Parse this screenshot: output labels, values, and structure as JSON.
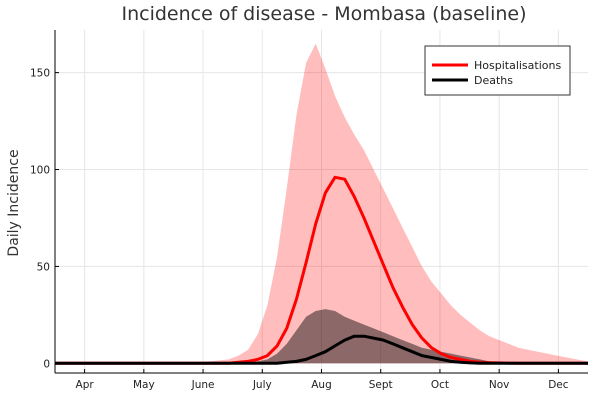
{
  "chart_data": {
    "type": "area",
    "title": "Incidence of disease - Mombasa (baseline)",
    "xlabel": "",
    "ylabel": "Daily Incidence",
    "x_ticks": [
      "Apr",
      "May",
      "June",
      "July",
      "Aug",
      "Sept",
      "Oct",
      "Nov",
      "Dec"
    ],
    "y_ticks": [
      0,
      50,
      100,
      150
    ],
    "xlim": [
      0,
      276
    ],
    "ylim": [
      -5,
      172
    ],
    "grid": true,
    "legend_position": "top-right",
    "x_points": [
      0,
      20,
      40,
      60,
      80,
      90,
      95,
      100,
      105,
      110,
      115,
      120,
      125,
      130,
      135,
      140,
      145,
      150,
      155,
      160,
      165,
      170,
      175,
      180,
      185,
      190,
      195,
      200,
      205,
      210,
      215,
      220,
      225,
      230,
      235,
      240,
      245,
      250,
      255,
      260,
      265,
      270,
      276
    ],
    "series": [
      {
        "name": "Hospitalisations",
        "color": "#ff0000",
        "median": [
          0,
          0,
          0,
          0,
          0,
          0,
          0.5,
          1,
          2,
          4,
          9,
          18,
          33,
          52,
          72,
          88,
          96,
          95,
          86,
          75,
          63,
          51,
          39,
          29,
          20,
          13,
          8,
          5,
          3,
          2,
          1,
          0.5,
          0.3,
          0.2,
          0.1,
          0,
          0,
          0,
          0,
          0,
          0,
          0,
          0
        ],
        "lower": [
          0,
          0,
          0,
          0,
          0,
          0,
          0,
          0,
          0,
          0,
          0,
          0,
          0,
          0,
          0,
          0,
          0,
          0,
          0,
          0,
          0,
          0,
          0,
          0,
          0,
          0,
          0,
          0,
          0,
          0,
          0,
          0,
          0,
          0,
          0,
          0,
          0,
          0,
          0,
          0,
          0,
          0,
          0
        ],
        "upper": [
          0,
          0,
          0,
          0,
          1,
          2,
          4,
          7,
          15,
          30,
          55,
          90,
          128,
          155,
          165,
          152,
          138,
          127,
          118,
          110,
          100,
          90,
          80,
          70,
          60,
          50,
          42,
          36,
          30,
          25,
          21,
          17,
          14,
          12,
          10,
          8,
          7,
          6,
          5,
          4,
          3,
          2,
          1
        ]
      },
      {
        "name": "Deaths",
        "color": "#000000",
        "median": [
          0,
          0,
          0,
          0,
          0,
          0,
          0,
          0,
          0,
          0,
          0,
          0.5,
          1,
          2,
          4,
          6,
          9,
          12,
          14,
          14,
          13,
          12,
          10,
          8,
          6,
          4,
          3,
          2,
          1,
          0.5,
          0.2,
          0,
          0,
          0,
          0,
          0,
          0,
          0,
          0,
          0,
          0,
          0,
          0
        ],
        "lower": [
          0,
          0,
          0,
          0,
          0,
          0,
          0,
          0,
          0,
          0,
          0,
          0,
          0,
          0,
          0,
          0,
          0,
          0,
          0,
          0,
          0,
          0,
          0,
          0,
          0,
          0,
          0,
          0,
          0,
          0,
          0,
          0,
          0,
          0,
          0,
          0,
          0,
          0,
          0,
          0,
          0,
          0,
          0
        ],
        "upper": [
          0,
          0,
          0,
          0,
          0,
          0,
          0,
          0.5,
          1,
          2,
          5,
          10,
          17,
          24,
          27,
          28,
          27,
          24,
          22,
          20,
          18,
          16,
          14,
          12,
          10,
          8,
          7,
          6,
          5,
          4,
          3,
          2,
          1,
          0.5,
          0,
          0,
          0,
          0,
          0,
          0,
          0,
          0,
          0
        ]
      }
    ]
  }
}
